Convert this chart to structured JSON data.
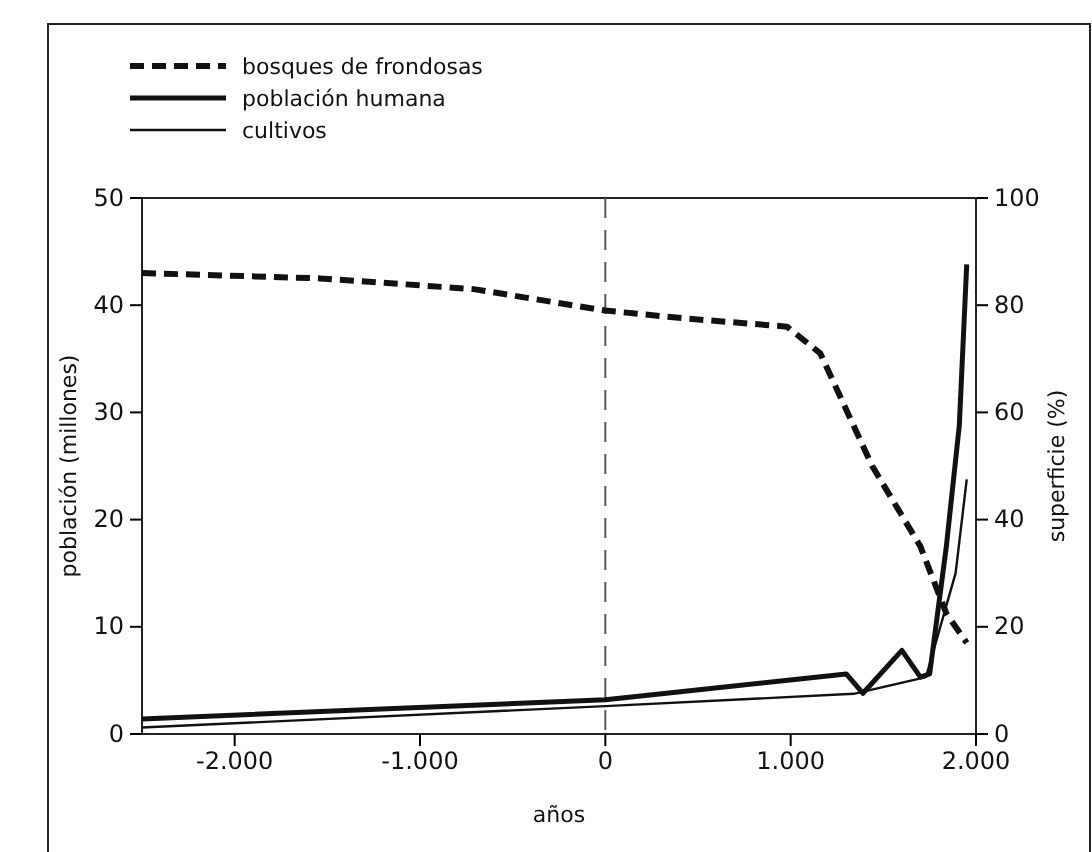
{
  "chart_data": {
    "type": "line",
    "xlabel": "años",
    "ylabel": "población (millones)",
    "y2label": "superficie (%)",
    "xlim": [
      -2500,
      2000
    ],
    "xticks": [
      {
        "value": -2000,
        "label": "-2.000"
      },
      {
        "value": -1000,
        "label": "-1.000"
      },
      0,
      {
        "value": 1000,
        "label": "1.000"
      },
      {
        "value": 2000,
        "label": "2.000"
      }
    ],
    "ylim": [
      0,
      50
    ],
    "yticks": [
      0,
      10,
      20,
      30,
      40,
      50
    ],
    "y2lim": [
      0,
      100
    ],
    "y2ticks": [
      0,
      20,
      40,
      60,
      80,
      100
    ],
    "legend": "top left",
    "grid": false,
    "ref_lines": [
      {
        "axis": "x",
        "value": 0,
        "line_style": "dashed",
        "color": "#555555"
      }
    ],
    "series": [
      {
        "name": "bosques de frondosas",
        "color": "#111111",
        "axis": "y2",
        "line_style": "dashed",
        "x": [
          -2500,
          -1540,
          -710,
          0,
          440,
          980,
          1160,
          1440,
          1700,
          1840,
          1950
        ],
        "values": [
          86,
          85,
          83,
          79,
          77.5,
          76,
          71,
          50,
          35,
          22.5,
          17
        ]
      },
      {
        "name": "población humana",
        "color": "#111111",
        "axis": "y",
        "line_style": "solid",
        "x": [
          -2500,
          0,
          330,
          1300,
          1390,
          1600,
          1700,
          1750,
          1840,
          1910,
          1950
        ],
        "values": [
          1.4,
          3.2,
          3.8,
          5.6,
          3.8,
          7.8,
          5.3,
          5.6,
          17.5,
          28.8,
          43.8
        ]
      },
      {
        "name": "cultivos",
        "color": "#111111",
        "axis": "y2",
        "line_style": "solid",
        "x": [
          -2500,
          0,
          1340,
          1730,
          1890,
          1950
        ],
        "values": [
          1.2,
          5.2,
          7.5,
          10.6,
          30,
          47.5
        ]
      }
    ]
  }
}
